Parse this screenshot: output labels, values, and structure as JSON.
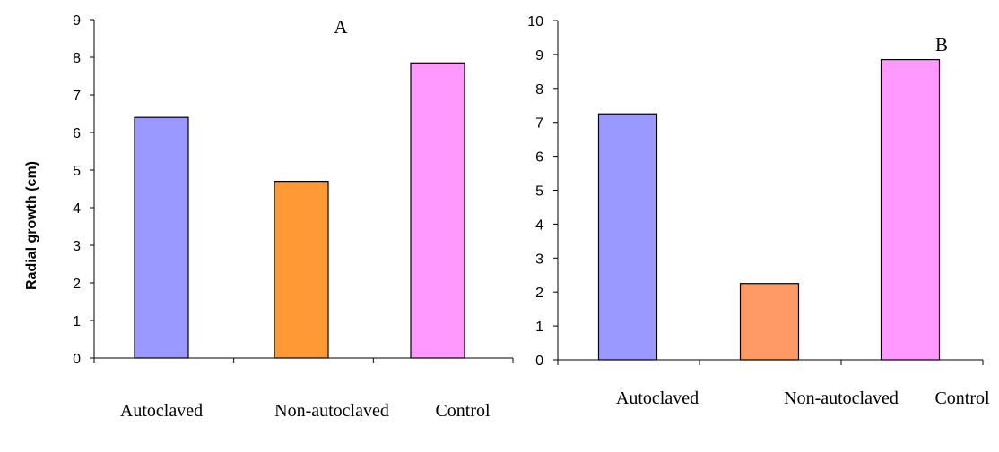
{
  "y_axis_label": "Radial growth (cm)",
  "chart_data": [
    {
      "type": "bar",
      "panel_label": "A",
      "categories": [
        "Autoclaved",
        "Non-autoclaved",
        "Control"
      ],
      "values": [
        6.4,
        4.7,
        7.85
      ],
      "colors": [
        "#9999ff",
        "#ff9933",
        "#ff99ff"
      ],
      "ylim": [
        0,
        9
      ],
      "yticks": [
        0,
        1,
        2,
        3,
        4,
        5,
        6,
        7,
        8,
        9
      ],
      "ylabel": "Radial growth (cm)",
      "xlabel": "",
      "grid": false,
      "legend": "none"
    },
    {
      "type": "bar",
      "panel_label": "B",
      "categories": [
        "Autoclaved",
        "Non-autoclaved",
        "Control"
      ],
      "values": [
        7.25,
        2.25,
        8.85
      ],
      "colors": [
        "#9999ff",
        "#ff9966",
        "#ff99ff"
      ],
      "ylim": [
        0,
        10
      ],
      "yticks": [
        0,
        1,
        2,
        3,
        4,
        5,
        6,
        7,
        8,
        9,
        10
      ],
      "ylabel": "",
      "xlabel": "",
      "grid": false,
      "legend": "none"
    }
  ]
}
